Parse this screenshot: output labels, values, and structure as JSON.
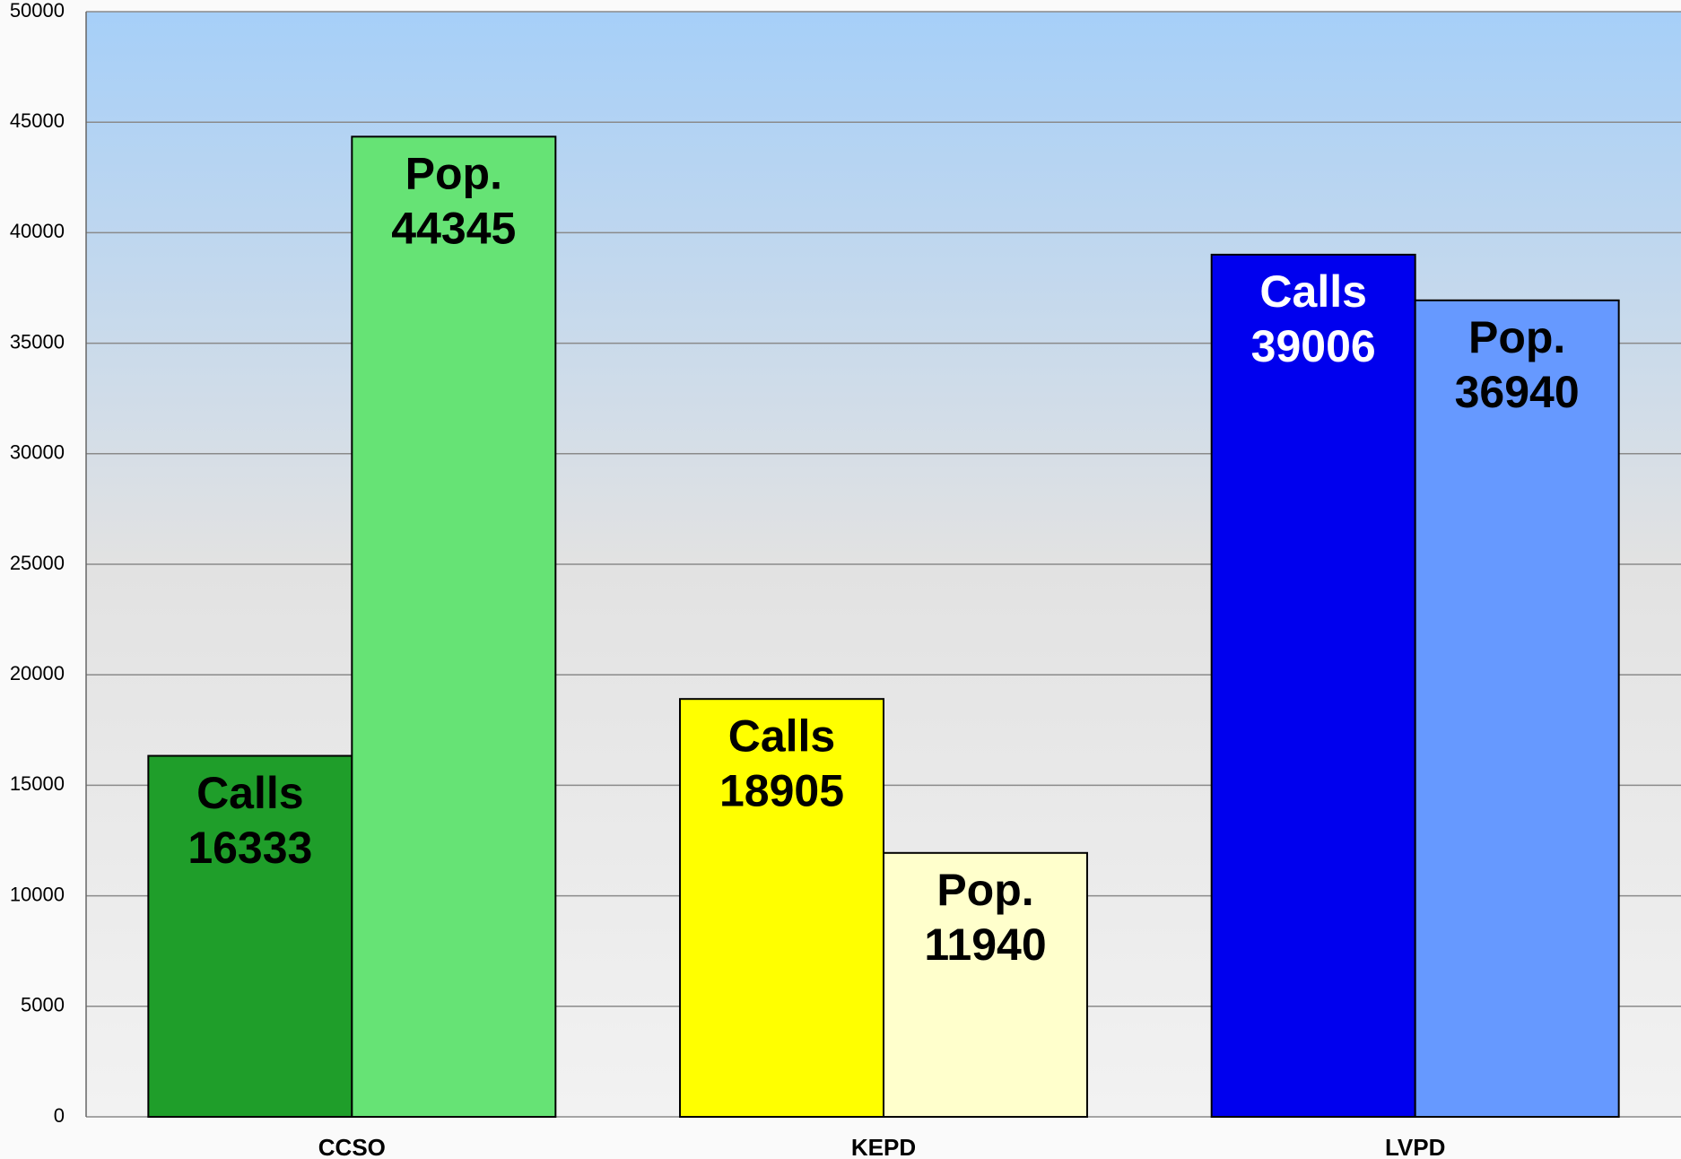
{
  "chart_data": {
    "type": "bar",
    "categories": [
      "CCSO",
      "KEPD",
      "LVPD"
    ],
    "series": [
      {
        "name": "Calls",
        "values": [
          16333,
          18905,
          39006
        ],
        "colors": [
          "#1f9e2a",
          "#ffff00",
          "#0000ee"
        ],
        "label_colors": [
          "#000000",
          "#000000",
          "#ffffff"
        ]
      },
      {
        "name": "Pop.",
        "values": [
          44345,
          11940,
          36940
        ],
        "colors": [
          "#66e375",
          "#ffffcc",
          "#6699ff"
        ],
        "label_colors": [
          "#000000",
          "#000000",
          "#000000"
        ]
      }
    ],
    "ylim": [
      0,
      50000
    ],
    "yticks": [
      0,
      5000,
      10000,
      15000,
      20000,
      25000,
      30000,
      35000,
      40000,
      45000,
      50000
    ],
    "grid": true
  }
}
